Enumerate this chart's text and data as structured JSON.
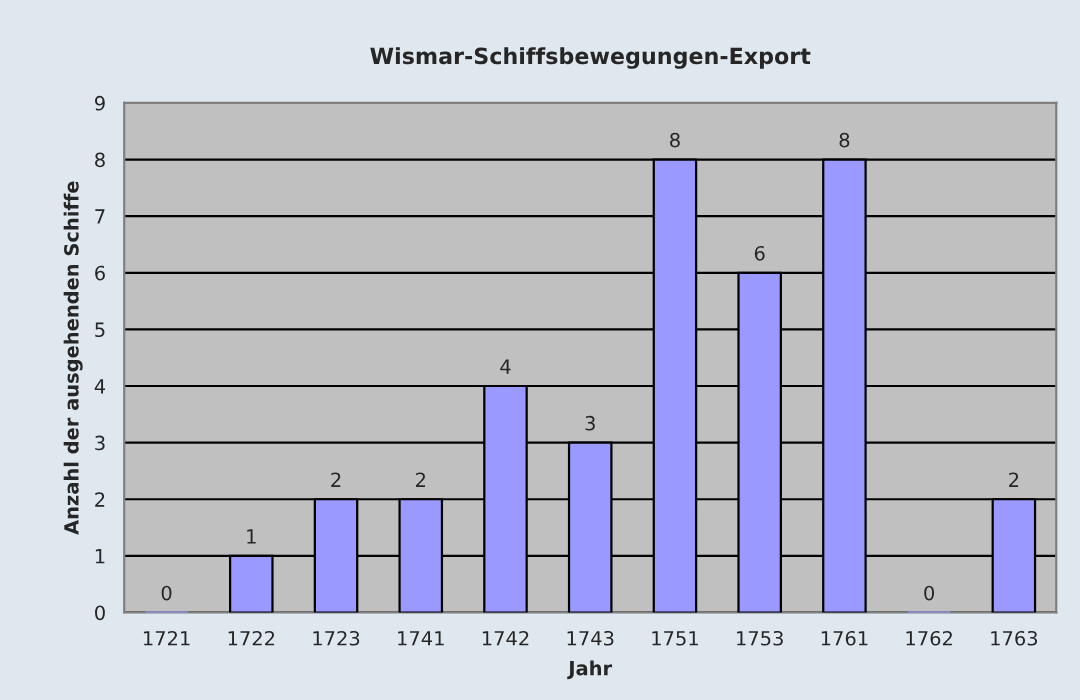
{
  "chart_data": {
    "type": "bar",
    "title": "Wismar-Schiffsbewegungen-Export",
    "xlabel": "Jahr",
    "ylabel": "Anzahl der ausgehenden Schiffe",
    "categories": [
      "1721",
      "1722",
      "1723",
      "1741",
      "1742",
      "1743",
      "1751",
      "1753",
      "1761",
      "1762",
      "1763"
    ],
    "values": [
      0,
      1,
      2,
      2,
      4,
      3,
      8,
      6,
      8,
      0,
      2
    ],
    "color": "#9999ff",
    "ylim": [
      0,
      9
    ],
    "yticks": [
      0,
      1,
      2,
      3,
      4,
      5,
      6,
      7,
      8,
      9
    ],
    "grid": "y",
    "data_labels": true,
    "legend": false
  }
}
